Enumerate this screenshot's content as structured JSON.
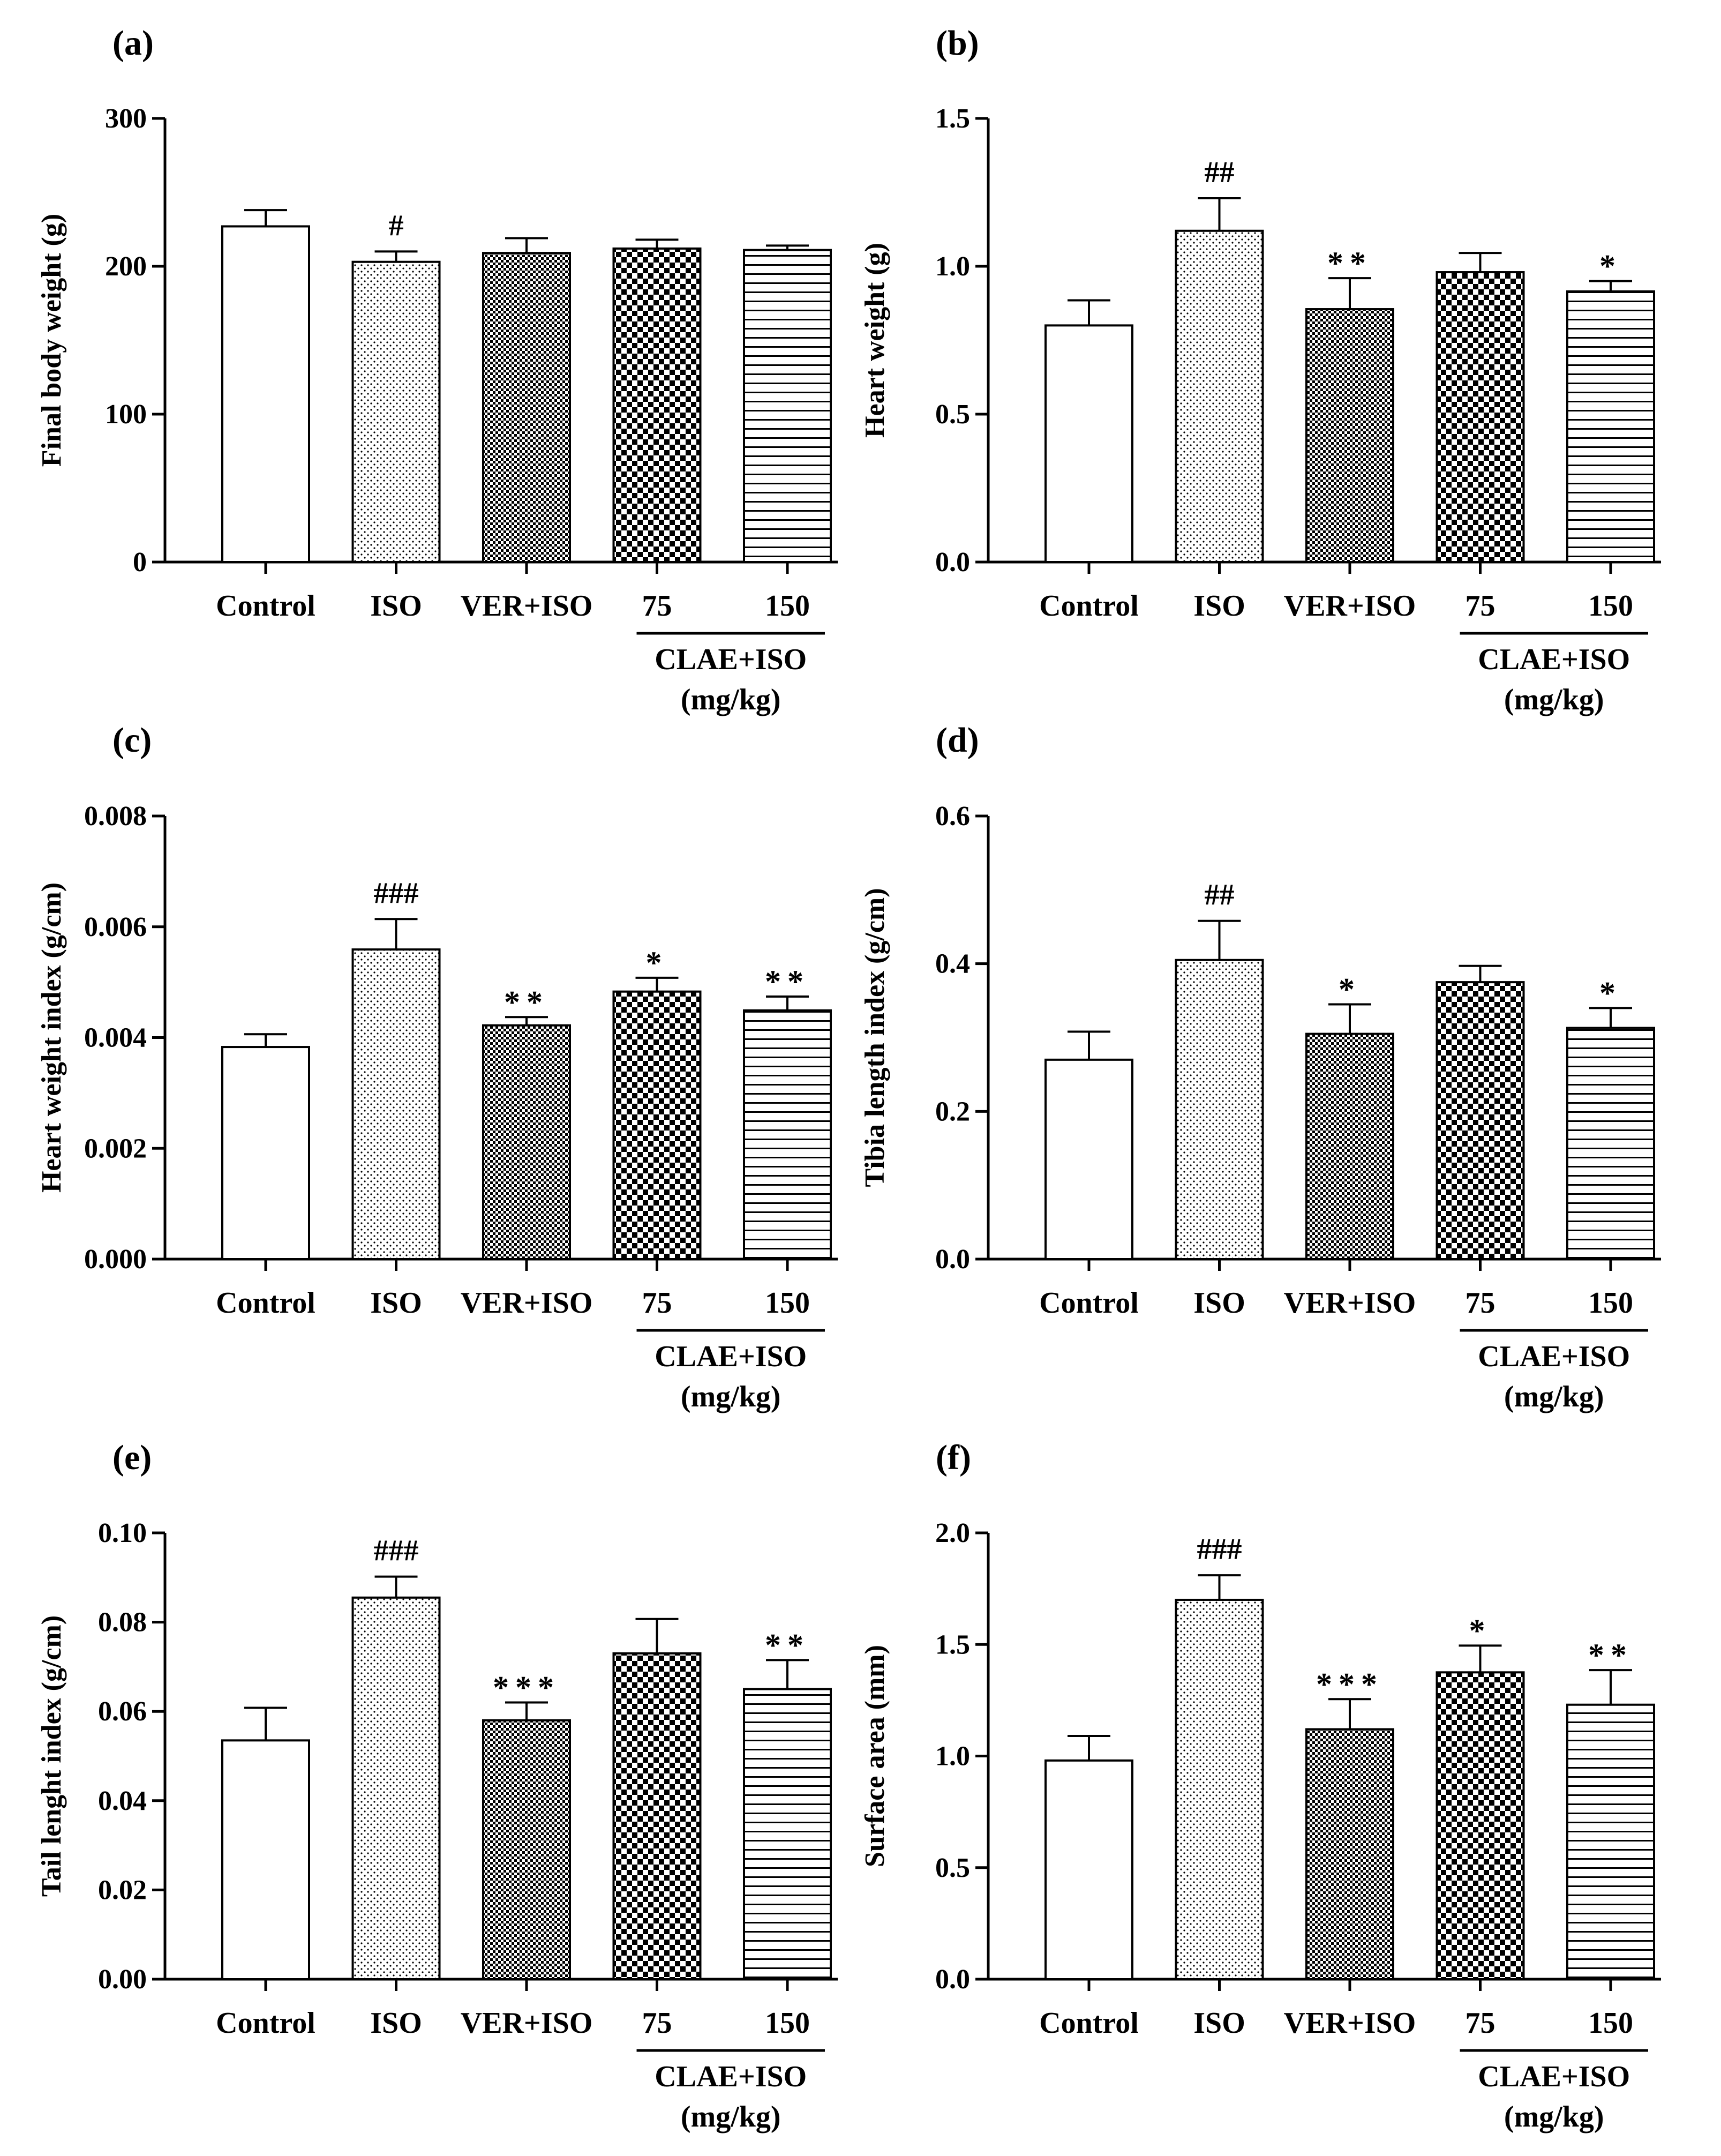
{
  "figure": {
    "categories": [
      "Control",
      "ISO",
      "VER+ISO",
      "75",
      "150"
    ],
    "group_label": "CLAE+ISO",
    "group_unit": "(mg/kg)",
    "bar_outline": "#000000",
    "sig_color": "#000000"
  },
  "chart_data": [
    {
      "type": "bar",
      "panel": "(a)",
      "ylabel": "Final body weight (g)",
      "xlabel": "",
      "ylim": [
        0,
        300
      ],
      "yticks": [
        "0",
        "100",
        "200",
        "300"
      ],
      "categories": [
        "Control",
        "ISO",
        "VER+ISO",
        "75",
        "150"
      ],
      "values": [
        227,
        203,
        209,
        212,
        211
      ],
      "errors": [
        11,
        7,
        10,
        6,
        3
      ],
      "annotations": [
        "",
        "#",
        "",
        "",
        ""
      ]
    },
    {
      "type": "bar",
      "panel": "(b)",
      "ylabel": "Heart weight (g)",
      "xlabel": "",
      "ylim": [
        0,
        1.5
      ],
      "yticks": [
        "0.0",
        "0.5",
        "1.0",
        "1.5"
      ],
      "categories": [
        "Control",
        "ISO",
        "VER+ISO",
        "75",
        "150"
      ],
      "values": [
        0.8,
        1.12,
        0.855,
        0.98,
        0.915
      ],
      "errors": [
        0.085,
        0.11,
        0.105,
        0.065,
        0.035
      ],
      "annotations": [
        "",
        "##",
        "**",
        "",
        "*"
      ]
    },
    {
      "type": "bar",
      "panel": "(c)",
      "ylabel": "Heart weight index (g/cm)",
      "xlabel": "",
      "ylim": [
        0,
        0.008
      ],
      "yticks": [
        "0.000",
        "0.002",
        "0.004",
        "0.006",
        "0.008"
      ],
      "categories": [
        "Control",
        "ISO",
        "VER+ISO",
        "75",
        "150"
      ],
      "values": [
        0.00383,
        0.00559,
        0.00422,
        0.00483,
        0.00449
      ],
      "errors": [
        0.00023,
        0.00055,
        0.00015,
        0.00025,
        0.00025
      ],
      "annotations": [
        "",
        "###",
        "**",
        "*",
        "**"
      ]
    },
    {
      "type": "bar",
      "panel": "(d)",
      "ylabel": "Tibia length index (g/cm)",
      "xlabel": "",
      "ylim": [
        0,
        0.6
      ],
      "yticks": [
        "0.0",
        "0.2",
        "0.4",
        "0.6"
      ],
      "categories": [
        "Control",
        "ISO",
        "VER+ISO",
        "75",
        "150"
      ],
      "values": [
        0.27,
        0.405,
        0.305,
        0.375,
        0.313
      ],
      "errors": [
        0.038,
        0.053,
        0.04,
        0.022,
        0.027
      ],
      "annotations": [
        "",
        "##",
        "*",
        "",
        "*"
      ]
    },
    {
      "type": "bar",
      "panel": "(e)",
      "ylabel": "Tail lenght index (g/cm)",
      "xlabel": "",
      "ylim": [
        0,
        0.1
      ],
      "yticks": [
        "0.00",
        "0.02",
        "0.04",
        "0.06",
        "0.08",
        "0.10"
      ],
      "categories": [
        "Control",
        "ISO",
        "VER+ISO",
        "75",
        "150"
      ],
      "values": [
        0.0535,
        0.0855,
        0.058,
        0.073,
        0.065
      ],
      "errors": [
        0.0073,
        0.0047,
        0.004,
        0.0077,
        0.0065
      ],
      "annotations": [
        "",
        "###",
        "***",
        "",
        "**"
      ]
    },
    {
      "type": "bar",
      "panel": "(f)",
      "ylabel": "Surface area (mm)",
      "xlabel": "",
      "ylim": [
        0,
        2.0
      ],
      "yticks": [
        "0.0",
        "0.5",
        "1.0",
        "1.5",
        "2.0"
      ],
      "categories": [
        "Control",
        "ISO",
        "VER+ISO",
        "75",
        "150"
      ],
      "values": [
        0.98,
        1.7,
        1.12,
        1.375,
        1.23
      ],
      "errors": [
        0.11,
        0.11,
        0.135,
        0.12,
        0.155
      ],
      "annotations": [
        "",
        "###",
        "***",
        "*",
        "**"
      ]
    }
  ]
}
